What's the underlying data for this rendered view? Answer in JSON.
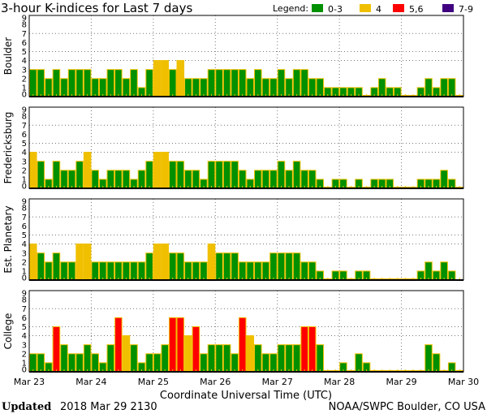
{
  "chart_data": {
    "type": "bar",
    "title": "3-hour K-indices for Last 7 days",
    "legend": {
      "label": "Legend:",
      "placement": "top-right",
      "entries": [
        {
          "label": "0-3",
          "color": "#009000"
        },
        {
          "label": "4",
          "color": "#f0c000"
        },
        {
          "label": "5,6",
          "color": "#ff0000"
        },
        {
          "label": "7-9",
          "color": "#400080"
        }
      ]
    },
    "edge_color": "#f0c000",
    "xlabel": "Coordinate Universal Time (UTC)",
    "x_ticks": [
      "Mar 23",
      "Mar 24",
      "Mar 25",
      "Mar 26",
      "Mar 27",
      "Mar 28",
      "Mar 29",
      "Mar 30"
    ],
    "y_ticks": [
      "0",
      "1",
      "2",
      "3",
      "4",
      "5",
      "6",
      "7",
      "8",
      "9"
    ],
    "ylim": [
      0,
      9
    ],
    "gridlines_y": [
      4,
      5,
      7
    ],
    "bars_per_day": 8,
    "panels": [
      {
        "name": "Boulder",
        "values": [
          3,
          3,
          2,
          3,
          2,
          3,
          3,
          3,
          2,
          2,
          3,
          3,
          2,
          3,
          1,
          3,
          4,
          4,
          3,
          4,
          2,
          2,
          2,
          3,
          3,
          3,
          3,
          3,
          2,
          3,
          2,
          2,
          3,
          2,
          3,
          3,
          2,
          2,
          1,
          1,
          1,
          1,
          1,
          0,
          1,
          2,
          1,
          1,
          0,
          0,
          1,
          2,
          1,
          2,
          2,
          0
        ]
      },
      {
        "name": "Fredericksburg",
        "values": [
          4,
          3,
          1,
          3,
          2,
          2,
          3,
          4,
          2,
          1,
          2,
          2,
          2,
          1,
          2,
          3,
          4,
          4,
          3,
          3,
          2,
          2,
          1,
          3,
          3,
          3,
          3,
          2,
          1,
          2,
          2,
          2,
          3,
          2,
          3,
          2,
          2,
          1,
          0,
          1,
          1,
          0,
          1,
          0,
          1,
          1,
          1,
          0,
          0,
          0,
          1,
          1,
          1,
          2,
          1,
          0
        ]
      },
      {
        "name": "Est. Planetary",
        "values": [
          4,
          3,
          2,
          3,
          2,
          2,
          4,
          4,
          2,
          2,
          2,
          2,
          2,
          2,
          2,
          3,
          4,
          4,
          3,
          3,
          2,
          2,
          2,
          4,
          3,
          3,
          3,
          2,
          2,
          2,
          2,
          3,
          3,
          3,
          3,
          2,
          2,
          1,
          0,
          1,
          1,
          0,
          1,
          1,
          0,
          0,
          0,
          0,
          0,
          0,
          1,
          2,
          1,
          2,
          1,
          null
        ]
      },
      {
        "name": "College",
        "values": [
          2,
          2,
          1,
          5,
          3,
          2,
          2,
          3,
          2,
          1,
          3,
          6,
          4,
          3,
          1,
          2,
          2,
          3,
          6,
          6,
          4,
          5,
          2,
          3,
          3,
          3,
          2,
          6,
          4,
          3,
          2,
          2,
          3,
          3,
          3,
          5,
          5,
          3,
          0,
          0,
          1,
          0,
          2,
          1,
          0,
          0,
          0,
          0,
          0,
          0,
          0,
          3,
          2,
          0,
          1,
          0
        ]
      }
    ]
  },
  "footer": {
    "updated_label": "Updated",
    "updated_value": "2018 Mar 29 2130",
    "source": "NOAA/SWPC Boulder, CO USA"
  }
}
